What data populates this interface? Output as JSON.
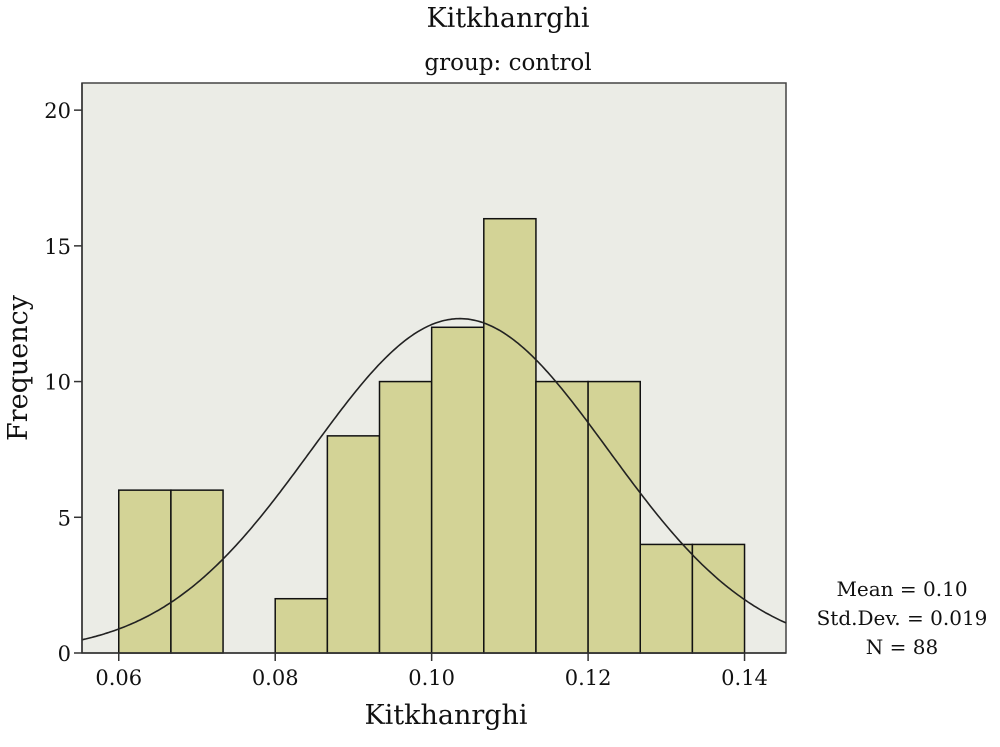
{
  "chart_data": {
    "type": "bar",
    "title": "Kitkhanrghi",
    "subtitle": "group: control",
    "xlabel": "Kitkhanrghi",
    "ylabel": "Frequency",
    "bin_width": 0.006667,
    "bars": [
      {
        "x_start": 0.06,
        "x_end": 0.066667,
        "count": 6
      },
      {
        "x_start": 0.066667,
        "x_end": 0.073333,
        "count": 6
      },
      {
        "x_start": 0.073333,
        "x_end": 0.08,
        "count": 0
      },
      {
        "x_start": 0.08,
        "x_end": 0.086667,
        "count": 2
      },
      {
        "x_start": 0.086667,
        "x_end": 0.093333,
        "count": 8
      },
      {
        "x_start": 0.093333,
        "x_end": 0.1,
        "count": 10
      },
      {
        "x_start": 0.1,
        "x_end": 0.106667,
        "count": 12
      },
      {
        "x_start": 0.106667,
        "x_end": 0.113333,
        "count": 16
      },
      {
        "x_start": 0.113333,
        "x_end": 0.12,
        "count": 10
      },
      {
        "x_start": 0.12,
        "x_end": 0.126667,
        "count": 10
      },
      {
        "x_start": 0.126667,
        "x_end": 0.133333,
        "count": 4
      },
      {
        "x_start": 0.133333,
        "x_end": 0.14,
        "count": 4
      }
    ],
    "xlim": [
      0.0553,
      0.1453
    ],
    "ylim": [
      0,
      21
    ],
    "x_ticks": [
      0.06,
      0.08,
      0.1,
      0.12,
      0.14
    ],
    "x_tick_labels": [
      "0.06",
      "0.08",
      "0.10",
      "0.12",
      "0.14"
    ],
    "y_ticks": [
      0,
      5,
      10,
      15,
      20
    ],
    "y_tick_labels": [
      "0",
      "5",
      "10",
      "15",
      "20"
    ],
    "normal_curve": {
      "mean": 0.1036,
      "sd": 0.019,
      "n": 88
    },
    "grid": false,
    "stats": {
      "mean_label": "Mean = 0.10",
      "sd_label": "Std.Dev. = 0.019",
      "n_label": "N = 88"
    },
    "colors": {
      "plot_background": "#ebece6",
      "bar_fill": "#d3d396",
      "bar_stroke": "#111111",
      "curve": "#222222"
    }
  }
}
